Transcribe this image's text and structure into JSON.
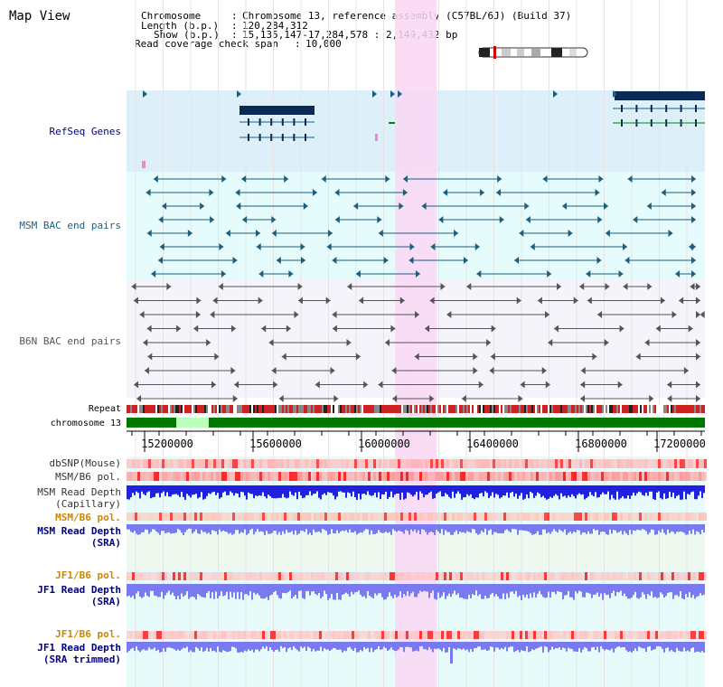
{
  "app": {
    "title": "Map View"
  },
  "header": {
    "chromosome_key": "Chromosome",
    "chromosome_value": "Chromosome 13, reference assembly (C57BL/6J) (Build 37)",
    "length_key": "Length (b.p.)",
    "length_value": "120,284,312",
    "show_key": "Show (b.p.)",
    "show_value": "15,135,147-17,284,578 : 2,149,432 bp",
    "coverage_key": "Read coverage check span",
    "coverage_value": "10,000"
  },
  "tracks": {
    "refseq_genes": "RefSeq Genes",
    "msm_bac": "MSM BAC end pairs",
    "b6n_bac": "B6N BAC end pairs",
    "repeat": "Repeat",
    "chromosome": "chromosome 13",
    "dbsnp": "dbSNP(Mouse)",
    "msm_b6_pol_1": "MSM/B6 pol.",
    "msm_depth_cap_1": "MSM Read Depth",
    "msm_depth_cap_2": "(Capillary)",
    "msm_b6_pol_2": "MSM/B6 pol.",
    "msm_depth_sra_1": "MSM Read Depth",
    "msm_depth_sra_2": "(SRA)",
    "jf1_b6_pol_1": "JF1/B6 pol.",
    "jf1_depth_sra_1": "JF1 Read Depth",
    "jf1_depth_sra_2": "(SRA)",
    "jf1_b6_pol_2": "JF1/B6 pol.",
    "jf1_depth_trim_1": "JF1 Read Depth",
    "jf1_depth_trim_2": "(SRA trimmed)"
  },
  "axis": {
    "ticks": [
      "15200000",
      "15600000",
      "16000000",
      "16400000",
      "16800000",
      "17200000"
    ]
  },
  "colors": {
    "refseq_bg": "#ddf0fa",
    "bac_bg": "#e6fbfb",
    "highlight": "#f9d7f3",
    "gene": "#0a2a55",
    "msm_pair": "#1d5e7e",
    "b6n_pair": "#555555",
    "chromosome_band": "#007700",
    "msm_label": "#000080",
    "pol_label_orange": "#cc8800",
    "depth_blue": "#2020e0",
    "depth_lightblue": "#7a7af0"
  }
}
